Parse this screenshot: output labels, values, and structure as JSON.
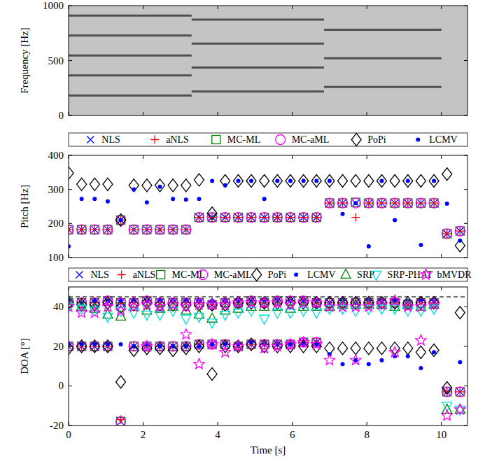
{
  "chart_data": [
    {
      "type": "spectrogram",
      "y_label": "Frequency [Hz]",
      "xlim": [
        0,
        10.7
      ],
      "xticks": [
        0,
        2,
        4,
        6,
        8,
        10
      ],
      "ylim": [
        0,
        1000
      ],
      "yticks": [
        0,
        500,
        1000
      ],
      "tick_labels": "y",
      "series": [
        {
          "color": "#505050",
          "x": [
            0,
            3.3
          ],
          "values": [
            182,
            182
          ]
        },
        {
          "color": "#505050",
          "x": [
            0,
            3.3
          ],
          "values": [
            364,
            364
          ]
        },
        {
          "color": "#505050",
          "x": [
            0,
            3.3
          ],
          "values": [
            546,
            546
          ]
        },
        {
          "color": "#505050",
          "x": [
            0,
            3.3
          ],
          "values": [
            728,
            728
          ]
        },
        {
          "color": "#505050",
          "x": [
            0,
            3.3
          ],
          "values": [
            910,
            910
          ]
        },
        {
          "color": "#505050",
          "x": [
            3.3,
            6.85
          ],
          "values": [
            218,
            218
          ]
        },
        {
          "color": "#505050",
          "x": [
            3.3,
            6.85
          ],
          "values": [
            436,
            436
          ]
        },
        {
          "color": "#505050",
          "x": [
            3.3,
            6.85
          ],
          "values": [
            654,
            654
          ]
        },
        {
          "color": "#505050",
          "x": [
            3.3,
            6.85
          ],
          "values": [
            872,
            872
          ]
        },
        {
          "color": "#505050",
          "x": [
            6.85,
            10
          ],
          "values": [
            260,
            260
          ]
        },
        {
          "color": "#505050",
          "x": [
            6.85,
            10
          ],
          "values": [
            520,
            520
          ]
        },
        {
          "color": "#505050",
          "x": [
            6.85,
            10
          ],
          "values": [
            780,
            780
          ]
        }
      ]
    },
    {
      "type": "scatter",
      "y_label": "Pitch [Hz]",
      "xlim": [
        0,
        10.7
      ],
      "xticks": [
        0,
        2,
        4,
        6,
        8,
        10
      ],
      "ylim": [
        100,
        400
      ],
      "yticks": [
        100,
        200,
        300,
        400
      ],
      "tick_labels": "y",
      "legend": "top",
      "x": [
        0,
        0.35,
        0.7,
        1.05,
        1.4,
        1.75,
        2.1,
        2.45,
        2.8,
        3.15,
        3.5,
        3.85,
        4.2,
        4.55,
        4.9,
        5.25,
        5.6,
        5.95,
        6.3,
        6.65,
        7.0,
        7.35,
        7.7,
        8.05,
        8.4,
        8.75,
        9.1,
        9.45,
        9.8,
        10.15,
        10.5
      ],
      "series": [
        {
          "name": "NLS",
          "color": "#0000ff",
          "marker": "x",
          "values": [
            182,
            182,
            182,
            182,
            210,
            182,
            182,
            182,
            182,
            182,
            218,
            218,
            218,
            218,
            218,
            218,
            218,
            218,
            218,
            218,
            260,
            260,
            260,
            260,
            260,
            260,
            260,
            260,
            260,
            170,
            178
          ]
        },
        {
          "name": "aNLS",
          "color": "#ff0000",
          "marker": "plus",
          "values": [
            182,
            182,
            182,
            182,
            210,
            182,
            182,
            182,
            182,
            182,
            218,
            218,
            218,
            218,
            218,
            218,
            218,
            218,
            218,
            218,
            260,
            260,
            218,
            260,
            260,
            260,
            260,
            260,
            260,
            170,
            178
          ]
        },
        {
          "name": "MC-ML",
          "color": "#008000",
          "marker": "square",
          "values": [
            182,
            182,
            182,
            182,
            210,
            182,
            182,
            182,
            182,
            182,
            218,
            218,
            218,
            218,
            218,
            218,
            218,
            218,
            218,
            218,
            260,
            260,
            262,
            260,
            260,
            260,
            260,
            260,
            260,
            170,
            178
          ]
        },
        {
          "name": "MC-aML",
          "color": "#ff00ff",
          "marker": "circle",
          "values": [
            182,
            182,
            182,
            182,
            210,
            182,
            182,
            182,
            182,
            182,
            218,
            218,
            218,
            218,
            218,
            218,
            218,
            218,
            218,
            218,
            260,
            260,
            260,
            260,
            260,
            260,
            260,
            260,
            260,
            170,
            178
          ]
        },
        {
          "name": "PoPi",
          "color": "#000000",
          "marker": "diamond",
          "values": [
            348,
            315,
            315,
            315,
            210,
            312,
            312,
            312,
            312,
            312,
            328,
            230,
            325,
            325,
            325,
            325,
            325,
            325,
            325,
            325,
            325,
            325,
            325,
            325,
            325,
            325,
            325,
            325,
            325,
            345,
            135
          ]
        },
        {
          "name": "LCMV",
          "color": "#0000ff",
          "marker": "dot",
          "values": [
            133,
            272,
            272,
            265,
            210,
            300,
            262,
            308,
            272,
            270,
            272,
            325,
            312,
            325,
            325,
            272,
            325,
            325,
            325,
            325,
            325,
            228,
            260,
            133,
            325,
            210,
            325,
            137,
            325,
            258,
            150
          ]
        }
      ]
    },
    {
      "type": "scatter",
      "y_label": "DOA [°]",
      "x_label": "Time [s]",
      "xlim": [
        0,
        10.7
      ],
      "xticks": [
        0,
        2,
        4,
        6,
        8,
        10
      ],
      "ylim": [
        -20,
        50
      ],
      "yticks": [
        -20,
        0,
        20,
        40
      ],
      "tick_labels": true,
      "legend": "top",
      "x": [
        0,
        0.35,
        0.7,
        1.05,
        1.4,
        1.75,
        2.1,
        2.45,
        2.8,
        3.15,
        3.5,
        3.85,
        4.2,
        4.55,
        4.9,
        5.25,
        5.6,
        5.95,
        6.3,
        6.65,
        7.0,
        7.35,
        7.7,
        8.05,
        8.4,
        8.75,
        9.1,
        9.45,
        9.8,
        10.15,
        10.5,
        0,
        0.35,
        0.7,
        1.05,
        1.4,
        1.75,
        2.1,
        2.45,
        2.8,
        3.15,
        3.5,
        3.85,
        4.2,
        4.55,
        4.9,
        5.25,
        5.6,
        5.95,
        6.3,
        6.65,
        7.0,
        7.35,
        7.7,
        8.05,
        8.4,
        8.75,
        9.1,
        9.45,
        9.8,
        10.15,
        10.5
      ],
      "series": [
        {
          "type": "line",
          "line_style": "dashed",
          "color": "#000000",
          "x": [
            0,
            10.7
          ],
          "values": [
            45,
            45
          ]
        },
        {
          "name": "NLS",
          "color": "#0000ff",
          "marker": "x",
          "values": [
            42,
            42,
            42,
            43,
            42,
            42,
            43,
            42,
            42,
            42,
            42,
            41,
            42,
            42,
            43,
            42,
            43,
            43,
            43,
            42,
            42,
            42,
            42,
            42,
            42,
            42,
            41,
            42,
            42,
            -3,
            -3,
            20,
            20,
            20,
            20,
            -18,
            20,
            20,
            20,
            20,
            20,
            21,
            21,
            21,
            20,
            21,
            21,
            21,
            21,
            22,
            22,
            null,
            null,
            null,
            null,
            null,
            null,
            null,
            null,
            null,
            null,
            null
          ]
        },
        {
          "name": "aNLS",
          "color": "#ff0000",
          "marker": "plus",
          "values": [
            42,
            42,
            42,
            43,
            42,
            42,
            43,
            42,
            42,
            42,
            42,
            41,
            42,
            42,
            43,
            42,
            43,
            43,
            43,
            42,
            42,
            42,
            42,
            42,
            42,
            42,
            41,
            42,
            42,
            -3,
            -3,
            20,
            20,
            20,
            20,
            -17,
            20,
            20,
            20,
            20,
            20,
            21,
            21,
            21,
            20,
            21,
            21,
            21,
            21,
            22,
            22,
            null,
            null,
            null,
            null,
            null,
            null,
            null,
            null,
            null,
            null,
            null
          ]
        },
        {
          "name": "MC-ML",
          "color": "#008000",
          "marker": "square",
          "values": [
            42,
            42,
            42,
            43,
            42,
            42,
            43,
            42,
            42,
            42,
            42,
            41,
            42,
            42,
            43,
            42,
            43,
            43,
            43,
            42,
            42,
            42,
            42,
            42,
            42,
            42,
            41,
            42,
            42,
            -3,
            -3,
            20,
            20,
            20,
            20,
            -18,
            20,
            20,
            20,
            20,
            20,
            21,
            21,
            21,
            20,
            21,
            21,
            21,
            21,
            22,
            22,
            null,
            null,
            null,
            null,
            null,
            null,
            null,
            null,
            null,
            null,
            null
          ]
        },
        {
          "name": "MC-aML",
          "color": "#ff00ff",
          "marker": "circle",
          "values": [
            42,
            42,
            42,
            43,
            42,
            42,
            43,
            42,
            42,
            42,
            42,
            41,
            42,
            42,
            43,
            42,
            43,
            43,
            43,
            42,
            42,
            42,
            42,
            42,
            42,
            42,
            41,
            42,
            42,
            -3,
            -3,
            20,
            20,
            20,
            20,
            -18,
            20,
            20,
            20,
            20,
            20,
            21,
            21,
            21,
            20,
            21,
            21,
            21,
            21,
            22,
            22,
            null,
            null,
            null,
            null,
            null,
            null,
            null,
            null,
            null,
            null,
            null
          ]
        },
        {
          "name": "PoPi",
          "color": "#000000",
          "marker": "diamond",
          "values": [
            42,
            41,
            41,
            42,
            40,
            41,
            42,
            41,
            41,
            41,
            41,
            41,
            41,
            42,
            42,
            42,
            42,
            42,
            42,
            42,
            42,
            42,
            42,
            42,
            42,
            42,
            42,
            42,
            42,
            null,
            37,
            19,
            20,
            20,
            20,
            2,
            18,
            19,
            19,
            18,
            19,
            20,
            6,
            20,
            20,
            21,
            20,
            20,
            20,
            20,
            20,
            19,
            19,
            19,
            19,
            19,
            19,
            19,
            17,
            18,
            -1,
            null
          ]
        },
        {
          "name": "LCMV",
          "color": "#0000ff",
          "marker": "dot",
          "values": [
            43,
            42,
            43,
            43,
            43,
            43,
            43,
            43,
            43,
            43,
            43,
            43,
            43,
            43,
            43,
            43,
            43,
            43,
            43,
            43,
            42,
            43,
            42,
            43,
            43,
            43,
            43,
            43,
            43,
            null,
            null,
            21,
            21,
            21,
            21,
            21,
            20,
            21,
            20,
            20,
            20,
            20,
            21,
            21,
            21,
            22,
            21,
            21,
            21,
            21,
            21,
            16,
            11,
            13,
            11,
            13,
            15,
            15,
            9,
            17,
            null,
            12
          ]
        },
        {
          "name": "SRP",
          "color": "#008000",
          "marker": "triangle-up",
          "values": [
            43,
            40,
            39,
            36,
            35,
            40,
            38,
            39,
            40,
            38,
            36,
            34,
            38,
            39,
            40,
            40,
            40,
            39,
            40,
            40,
            40,
            41,
            41,
            41,
            41,
            40,
            41,
            40,
            41,
            -12,
            -12,
            null,
            null,
            null,
            null,
            null,
            null,
            null,
            null,
            null,
            null,
            null,
            null,
            null,
            null,
            null,
            null,
            null,
            null,
            null,
            null,
            null,
            null,
            null,
            null,
            null,
            null,
            null,
            null,
            null,
            null,
            null
          ]
        },
        {
          "name": "SRP-PHAT",
          "color": "#00dddd",
          "marker": "triangle-down",
          "values": [
            40,
            39,
            38,
            35,
            38,
            37,
            36,
            36,
            38,
            34,
            35,
            32,
            36,
            37,
            38,
            34,
            37,
            37,
            38,
            37,
            39,
            39,
            38,
            39,
            39,
            39,
            38,
            38,
            39,
            -10,
            -12,
            null,
            null,
            null,
            null,
            null,
            null,
            null,
            null,
            null,
            null,
            null,
            null,
            null,
            null,
            null,
            null,
            null,
            null,
            null,
            null,
            null,
            null,
            null,
            null,
            null,
            null,
            null,
            null,
            null,
            null,
            null
          ]
        },
        {
          "name": "bMVDR",
          "color": "#ff00ff",
          "marker": "star",
          "values": [
            40,
            37,
            37,
            40,
            38,
            40,
            41,
            40,
            41,
            40,
            41,
            41,
            41,
            42,
            42,
            42,
            42,
            41,
            42,
            42,
            40,
            40,
            40,
            40,
            41,
            43,
            40,
            40,
            41,
            null,
            null,
            null,
            null,
            null,
            null,
            null,
            null,
            20,
            null,
            null,
            26,
            11,
            21,
            17,
            20,
            null,
            19,
            20,
            21,
            22,
            21,
            13,
            null,
            13,
            null,
            null,
            17,
            null,
            23,
            null,
            -15,
            -12
          ]
        }
      ]
    }
  ]
}
